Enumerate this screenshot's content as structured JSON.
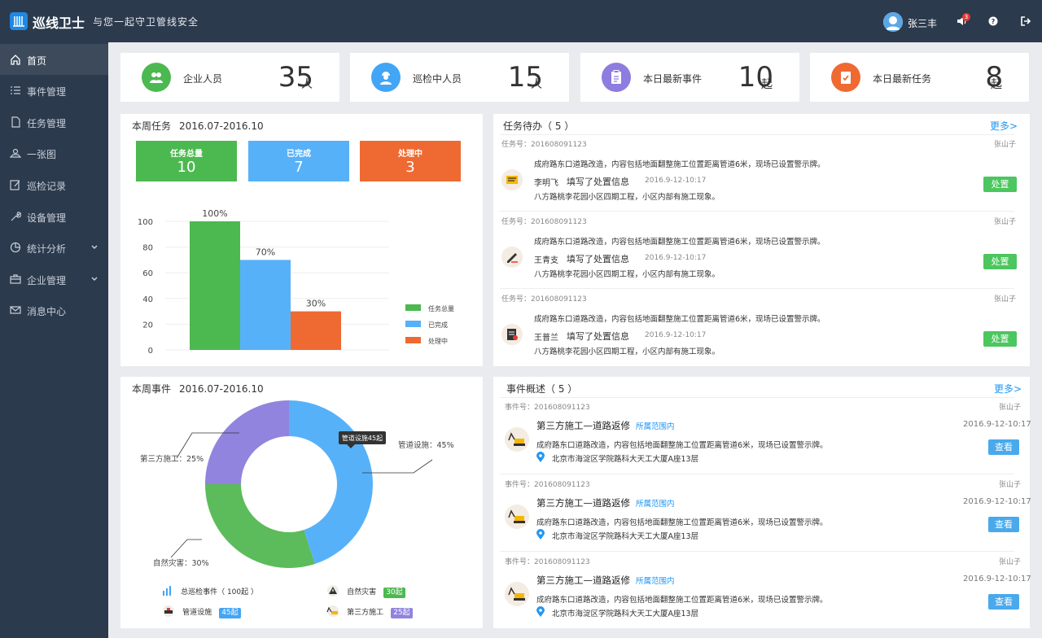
{
  "app": {
    "title": "巡线卫士",
    "slogan": "与您一起守卫管线安全"
  },
  "user": {
    "name": "张三丰",
    "notification_count": "3"
  },
  "sidebar": {
    "items": [
      {
        "label": "首页",
        "icon": "home-icon",
        "active": true
      },
      {
        "label": "事件管理",
        "icon": "list-icon"
      },
      {
        "label": "任务管理",
        "icon": "document-icon"
      },
      {
        "label": "一张图",
        "icon": "map-icon"
      },
      {
        "label": "巡检记录",
        "icon": "edit-icon"
      },
      {
        "label": "设备管理",
        "icon": "wrench-icon"
      },
      {
        "label": "统计分析",
        "icon": "pie-icon",
        "has_submenu": true
      },
      {
        "label": "企业管理",
        "icon": "briefcase-icon",
        "has_submenu": true
      },
      {
        "label": "消息中心",
        "icon": "mail-icon"
      }
    ]
  },
  "stats": [
    {
      "label": "企业人员",
      "value": "35",
      "unit": "人",
      "color": "#4cb950",
      "icon": "people-icon"
    },
    {
      "label": "巡检中人员",
      "value": "15",
      "unit": "人",
      "color": "#42a5f5",
      "icon": "worker-icon"
    },
    {
      "label": "本日最新事件",
      "value": "10",
      "unit": "起",
      "color": "#8e7ce0",
      "icon": "clipboard-icon"
    },
    {
      "label": "本日最新任务",
      "value": "8",
      "unit": "起",
      "color": "#ee6a32",
      "icon": "task-check-icon"
    }
  ],
  "weekly_tasks": {
    "title": "本周任务",
    "range": "2016.07-2016.10",
    "boxes": [
      {
        "label": "任务总量",
        "value": "10",
        "color": "#4cb950"
      },
      {
        "label": "已完成",
        "value": "7",
        "color": "#57b1f9"
      },
      {
        "label": "处理中",
        "value": "3",
        "color": "#ee6a32"
      }
    ]
  },
  "chart_data": [
    {
      "type": "bar",
      "categories": [
        "任务总量",
        "已完成",
        "处理中"
      ],
      "values": [
        100,
        70,
        30
      ],
      "value_labels": [
        "100%",
        "70%",
        "30%"
      ],
      "colors": [
        "#4cb950",
        "#57b1f9",
        "#ee6a32"
      ],
      "yticks": [
        "0",
        "20",
        "40",
        "60",
        "80",
        "100"
      ],
      "ylim": [
        0,
        100
      ],
      "legend": [
        "任务总量",
        "已完成",
        "处理中"
      ],
      "legend_position": "right"
    },
    {
      "type": "pie",
      "donut": true,
      "slices": [
        {
          "name": "管道设施",
          "value": 45,
          "label": "管道设施：45%",
          "color": "#57b1f9"
        },
        {
          "name": "自然灾害",
          "value": 30,
          "label": "自然灾害：30%",
          "color": "#5cbb5a"
        },
        {
          "name": "第三方施工",
          "value": 25,
          "label": "第三方施工：25%",
          "color": "#9184de"
        }
      ],
      "tooltip": "管道设施45起"
    }
  ],
  "todo": {
    "title": "任务待办（ 5 ）",
    "more": "更多>",
    "items": [
      {
        "number": "任务号：201608091123",
        "owner": "张山子",
        "desc": "成府路东口道路改造，内容包括地面翻整施工位置距离管道6米，现场已设置警示牌。",
        "person": "李明飞",
        "action": "填写了处置信息",
        "time": "2016.9-12-10:17",
        "detail": "八方路桃李花园小区四期工程，小区内部有施工现象。",
        "button": "处置",
        "icon": "note-icon"
      },
      {
        "number": "任务号：201608091123",
        "owner": "张山子",
        "desc": "成府路东口道路改造，内容包括地面翻整施工位置距离管道6米，现场已设置警示牌。",
        "person": "王青支",
        "action": "填写了处置信息",
        "time": "2016.9-12-10:17",
        "detail": "八方路桃李花园小区四期工程，小区内部有施工现象。",
        "button": "处置",
        "icon": "pen-icon"
      },
      {
        "number": "任务号：201608091123",
        "owner": "张山子",
        "desc": "成府路东口道路改造，内容包括地面翻整施工位置距离管道6米，现场已设置警示牌。",
        "person": "王普兰",
        "action": "填写了处置信息",
        "time": "2016.9-12-10:17",
        "detail": "八方路桃李花园小区四期工程，小区内部有施工现象。",
        "button": "处置",
        "icon": "checklist-icon"
      }
    ]
  },
  "weekly_events": {
    "title": "本周事件",
    "range": "2016.07-2016.10",
    "legend": [
      {
        "label": "总巡检事件（ 100起 ）",
        "icon": "bar-chart-icon"
      },
      {
        "label": "自然灾害",
        "count": "30起",
        "color": "#4cb950",
        "icon": "warning-icon"
      },
      {
        "label": "管道设施",
        "count": "45起",
        "color": "#42a5f5",
        "icon": "pipe-icon"
      },
      {
        "label": "第三方施工",
        "count": "25起",
        "color": "#9184de",
        "icon": "excavator-icon"
      }
    ]
  },
  "events": {
    "title": "事件概述（ 5 ）",
    "more": "更多>",
    "items": [
      {
        "number": "事件号：201608091123",
        "owner": "张山子",
        "title": "第三方施工—道路返修",
        "scope": "所属范围内",
        "time": "2016.9-12-10:17",
        "desc": "成府路东口道路改造，内容包括地面翻整施工位置距离管道6米，现场已设置警示牌。",
        "address": "北京市海淀区学院路科大天工大厦A座13层",
        "button": "查看"
      },
      {
        "number": "事件号：201608091123",
        "owner": "张山子",
        "title": "第三方施工—道路返修",
        "scope": "所属范围内",
        "time": "2016.9-12-10:17",
        "desc": "成府路东口道路改造，内容包括地面翻整施工位置距离管道6米，现场已设置警示牌。",
        "address": "北京市海淀区学院路科大天工大厦A座13层",
        "button": "查看"
      },
      {
        "number": "事件号：201608091123",
        "owner": "张山子",
        "title": "第三方施工—道路返修",
        "scope": "所属范围内",
        "time": "2016.9-12-10:17",
        "desc": "成府路东口道路改造，内容包括地面翻整施工位置距离管道6米，现场已设置警示牌。",
        "address": "北京市海淀区学院路科大天工大厦A座13层",
        "button": "查看"
      }
    ]
  }
}
